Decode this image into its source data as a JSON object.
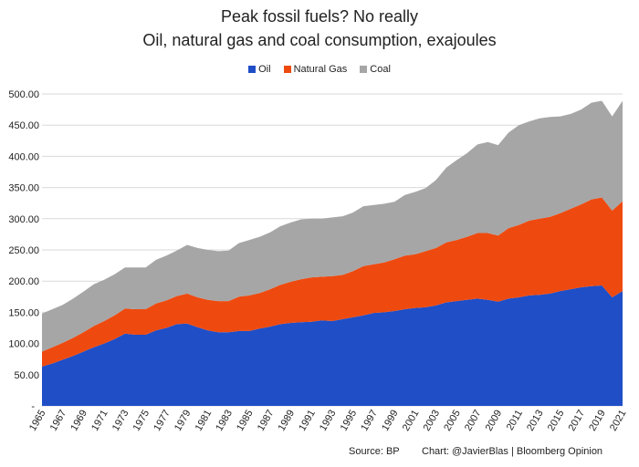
{
  "header": {
    "title": "Peak fossil fuels? No really",
    "subtitle": "Oil, natural gas and coal consumption, exajoules"
  },
  "footer": {
    "source": "Source: BP",
    "credit": "Chart: @JavierBlas | Bloomberg Opinion"
  },
  "chart_data": {
    "type": "area",
    "stacked": true,
    "title": "Peak fossil fuels? No really",
    "subtitle": "Oil, natural gas and coal consumption, exajoules",
    "xlabel": "",
    "ylabel": "",
    "ylim": [
      0,
      500
    ],
    "yticks": [
      "-",
      "50.00",
      "100.00",
      "150.00",
      "200.00",
      "250.00",
      "300.00",
      "350.00",
      "400.00",
      "450.00",
      "500.00"
    ],
    "grid": true,
    "legend_position": "top",
    "x": [
      1965,
      1966,
      1967,
      1968,
      1969,
      1970,
      1971,
      1972,
      1973,
      1974,
      1975,
      1976,
      1977,
      1978,
      1979,
      1980,
      1981,
      1982,
      1983,
      1984,
      1985,
      1986,
      1987,
      1988,
      1989,
      1990,
      1991,
      1992,
      1993,
      1994,
      1995,
      1996,
      1997,
      1998,
      1999,
      2000,
      2001,
      2002,
      2003,
      2004,
      2005,
      2006,
      2007,
      2008,
      2009,
      2010,
      2011,
      2012,
      2013,
      2014,
      2015,
      2016,
      2017,
      2018,
      2019,
      2020,
      2021
    ],
    "xtick_labels": [
      "1965",
      "1967",
      "1969",
      "1971",
      "1973",
      "1975",
      "1977",
      "1979",
      "1981",
      "1983",
      "1985",
      "1987",
      "1989",
      "1991",
      "1993",
      "1995",
      "1997",
      "1999",
      "2001",
      "2003",
      "2005",
      "2007",
      "2009",
      "2011",
      "2013",
      "2015",
      "2017",
      "2019",
      "2021"
    ],
    "series": [
      {
        "name": "Oil",
        "color": "#1f4ec7",
        "values": [
          63,
          68,
          74,
          80,
          87,
          94,
          100,
          107,
          116,
          114,
          114,
          121,
          125,
          131,
          132,
          126,
          121,
          118,
          118,
          120,
          120,
          124,
          127,
          131,
          133,
          134,
          135,
          137,
          136,
          139,
          142,
          145,
          149,
          150,
          152,
          155,
          157,
          158,
          161,
          166,
          168,
          170,
          172,
          170,
          167,
          172,
          174,
          177,
          178,
          180,
          184,
          187,
          190,
          192,
          193,
          174,
          184
        ]
      },
      {
        "name": "Natural Gas",
        "color": "#ee4a10",
        "values": [
          24,
          26,
          27,
          29,
          31,
          34,
          36,
          38,
          40,
          41,
          41,
          43,
          44,
          45,
          48,
          48,
          49,
          50,
          50,
          55,
          57,
          57,
          60,
          63,
          66,
          69,
          71,
          70,
          72,
          71,
          74,
          79,
          78,
          80,
          83,
          86,
          86,
          90,
          92,
          96,
          98,
          101,
          105,
          107,
          106,
          113,
          116,
          120,
          122,
          123,
          125,
          129,
          133,
          139,
          141,
          139,
          144
        ]
      },
      {
        "name": "Coal",
        "color": "#a6a6a6",
        "values": [
          61,
          61,
          61,
          63,
          65,
          67,
          66,
          66,
          66,
          67,
          67,
          70,
          72,
          73,
          78,
          79,
          80,
          80,
          81,
          86,
          89,
          90,
          91,
          94,
          95,
          96,
          94,
          93,
          94,
          94,
          94,
          96,
          95,
          94,
          92,
          97,
          100,
          101,
          109,
          120,
          128,
          134,
          142,
          146,
          145,
          153,
          160,
          159,
          161,
          160,
          155,
          152,
          152,
          155,
          155,
          151,
          161
        ]
      }
    ]
  }
}
